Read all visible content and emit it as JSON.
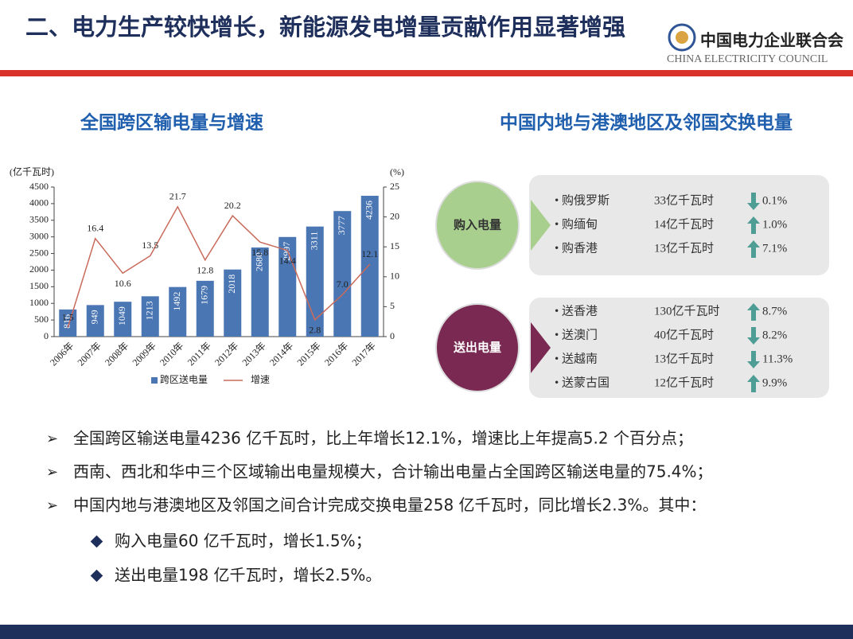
{
  "header": {
    "title": "二、电力生产较快增长，新能源发电增量贡献作用显著增强",
    "org_name": "中国电力企业联合会",
    "org_name_en": "CHINA ELECTRICITY COUNCIL"
  },
  "chart_data": {
    "type": "bar-line",
    "title": "全国跨区输电量与增速",
    "y_label": "(亿千瓦时)",
    "y2_label": "(%)",
    "categories": [
      "2006年",
      "2007年",
      "2008年",
      "2009年",
      "2010年",
      "2011年",
      "2012年",
      "2013年",
      "2014年",
      "2015年",
      "2016年",
      "2017年"
    ],
    "series": [
      {
        "name": "跨区送电量",
        "type": "bar",
        "color": "#4a76b3",
        "values": [
          816,
          949,
          1049,
          1213,
          1492,
          1679,
          2018,
          2680,
          2997,
          3311,
          3777,
          4236
        ]
      },
      {
        "name": "增速",
        "type": "line",
        "axis": "y2",
        "color": "#c96a5a",
        "values": [
          1.5,
          16.4,
          10.6,
          13.5,
          21.7,
          12.8,
          20.2,
          15.8,
          14.4,
          2.8,
          7.0,
          12.1
        ],
        "value_labels": [
          "1.5",
          "16.4",
          "10.6",
          "13.5",
          "21.7",
          "12.8",
          "20.2",
          "15.8",
          "14.4",
          "2.8",
          "7.0",
          "12.1"
        ]
      }
    ],
    "ylim": [
      0,
      4500
    ],
    "yticks": [
      0,
      500,
      1000,
      1500,
      2000,
      2500,
      3000,
      3500,
      4000,
      4500
    ],
    "y2lim": [
      0,
      25
    ],
    "y2ticks": [
      0,
      5,
      10,
      15,
      20,
      25
    ],
    "legend": "bottom"
  },
  "exchange": {
    "title": "中国内地与港澳地区及邻国交换电量",
    "groups": [
      {
        "label": "购入电量",
        "color": "#a9cf8f",
        "items": [
          {
            "name": "购俄罗斯",
            "amount": "33亿千瓦时",
            "trend": "down",
            "change": "0.1%"
          },
          {
            "name": "购缅甸",
            "amount": "14亿千瓦时",
            "trend": "up",
            "change": "1.0%"
          },
          {
            "name": "购香港",
            "amount": "13亿千瓦时",
            "trend": "up",
            "change": "7.1%"
          }
        ]
      },
      {
        "label": "送出电量",
        "color": "#7a2a52",
        "items": [
          {
            "name": "送香港",
            "amount": "130亿千瓦时",
            "trend": "up",
            "change": "8.7%"
          },
          {
            "name": "送澳门",
            "amount": "40亿千瓦时",
            "trend": "down",
            "change": "8.2%"
          },
          {
            "name": "送越南",
            "amount": "13亿千瓦时",
            "trend": "down",
            "change": "11.3%"
          },
          {
            "name": "送蒙古国",
            "amount": "12亿千瓦时",
            "trend": "up",
            "change": "9.9%"
          }
        ]
      }
    ]
  },
  "bullets": [
    {
      "text": "全国跨区输送电量4236 亿千瓦时，比上年增长12.1%，增速比上年提高5.2 个百分点；",
      "level": 1
    },
    {
      "text": "西南、西北和华中三个区域输出电量规模大，合计输出电量占全国跨区输送电量的75.4%；",
      "level": 1
    },
    {
      "text": "中国内地与港澳地区及邻国之间合计完成交换电量258 亿千瓦时，同比增长2.3%。其中：",
      "level": 1
    },
    {
      "text": "购入电量60 亿千瓦时，增长1.5%；",
      "level": 2
    },
    {
      "text": "送出电量198 亿千瓦时，增长2.5%。",
      "level": 2
    }
  ]
}
